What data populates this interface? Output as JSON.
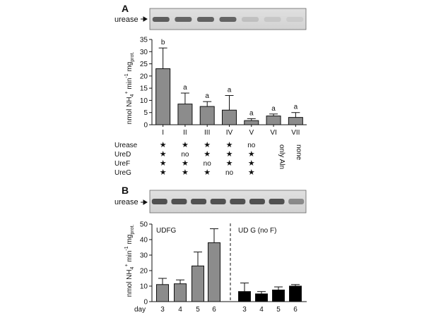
{
  "panel_a": {
    "label": "A",
    "blot_label": "urease",
    "ylabel_main": "nmol NH",
    "ylabel_sub": "4",
    "ylabel_sup": "+",
    "ylabel_rest": " min",
    "ylabel_exp": "-1",
    "ylabel_tail": " mg",
    "ylabel_tail_sub": "prot.",
    "table_rows": [
      {
        "label": "Urease",
        "cells": [
          "★",
          "★",
          "★",
          "★",
          "no"
        ]
      },
      {
        "label": "UreD",
        "cells": [
          "★",
          "no",
          "★",
          "★",
          "★"
        ]
      },
      {
        "label": "UreF",
        "cells": [
          "★",
          "★",
          "no",
          "★",
          "★"
        ]
      },
      {
        "label": "UreG",
        "cells": [
          "★",
          "★",
          "★",
          "no",
          "★"
        ]
      }
    ],
    "vertical_notes": [
      "only Aln",
      "none"
    ]
  },
  "panel_b": {
    "label": "B",
    "blot_label": "urease",
    "group_left": "UDFG",
    "group_right": "UD  G (no F)",
    "day_label": "day"
  },
  "chart_data": [
    {
      "type": "bar",
      "panel": "A",
      "categories": [
        "I",
        "II",
        "III",
        "IV",
        "V",
        "VI",
        "VII"
      ],
      "values": [
        23,
        8.5,
        7.5,
        6,
        1.7,
        3.6,
        3.0
      ],
      "errors": [
        8.5,
        4.5,
        2,
        6,
        0.8,
        0.8,
        2
      ],
      "letters": [
        "b",
        "a",
        "a",
        "a",
        "a",
        "a",
        "a"
      ],
      "ylim": [
        0,
        35
      ],
      "yticks": [
        0,
        5,
        10,
        15,
        20,
        25,
        30,
        35
      ],
      "bar_color": "#8c8c8c"
    },
    {
      "type": "bar",
      "panel": "B",
      "categories": [
        "3",
        "4",
        "5",
        "6",
        "3",
        "4",
        "5",
        "6"
      ],
      "values": [
        11,
        11.5,
        23,
        38,
        6.5,
        5,
        7.5,
        10
      ],
      "errors": [
        4,
        2.5,
        9,
        9,
        5.5,
        1.5,
        2,
        1
      ],
      "colors": [
        "#8c8c8c",
        "#8c8c8c",
        "#8c8c8c",
        "#8c8c8c",
        "#000000",
        "#000000",
        "#000000",
        "#000000"
      ],
      "ylim": [
        0,
        50
      ],
      "yticks": [
        0,
        10,
        20,
        30,
        40,
        50
      ]
    }
  ]
}
